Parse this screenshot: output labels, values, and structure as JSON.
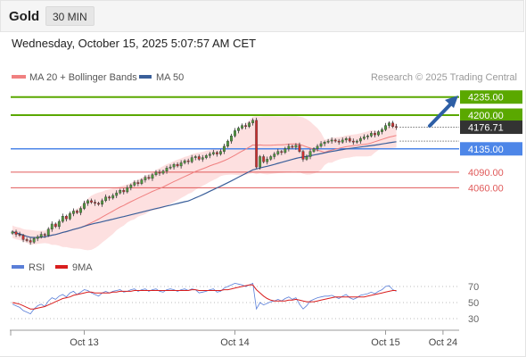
{
  "header": {
    "title": "Gold",
    "interval": "30 MIN"
  },
  "datetime": "Wednesday, October 15, 2025 5:07:57 AM CET",
  "legend": {
    "ma20_label": "MA 20 + Bollinger Bands",
    "ma50_label": "MA 50",
    "credit": "Research © 2025 Trading Central"
  },
  "colors": {
    "green_level": "#5aa800",
    "blue_level": "#4d86e8",
    "red_level": "#e05a5a",
    "up_candle": "#4f9a3e",
    "down_candle": "#cc3030",
    "band_fill": "#fddada",
    "ma20": "#f08080",
    "ma50": "#3a5f9a",
    "arrow": "#2e5fa6",
    "rsi": "#5a7fd8",
    "rsi_ma": "#d91e1e"
  },
  "levels": [
    {
      "price": 4235.0,
      "label": "4235.00",
      "kind": "resistance",
      "color": "green"
    },
    {
      "price": 4200.0,
      "label": "4200.00",
      "kind": "resistance",
      "color": "green"
    },
    {
      "price": 4176.71,
      "label": "4176.71",
      "kind": "last",
      "color": "dark"
    },
    {
      "price": 4135.0,
      "label": "4135.00",
      "kind": "pivot",
      "color": "blue"
    },
    {
      "price": 4090.0,
      "label": "4090.00",
      "kind": "support",
      "color": "red"
    },
    {
      "price": 4060.0,
      "label": "4060.00",
      "kind": "support",
      "color": "red"
    }
  ],
  "price_range": [
    3940,
    4250
  ],
  "x_axis": {
    "labels": [
      "Oct 13",
      "Oct 14",
      "Oct 15",
      "Oct 24"
    ],
    "index": [
      20,
      62,
      104,
      120
    ],
    "total_slots": 125
  },
  "rsi_panel": {
    "legend_rsi": "RSI",
    "legend_ma": "9MA",
    "ticks": [
      "70",
      "50",
      "30"
    ],
    "tick_values": [
      70,
      50,
      30
    ],
    "range": [
      20,
      80
    ]
  },
  "chart_data": {
    "type": "candlestick",
    "close": [
      3975,
      3970,
      3968,
      3960,
      3958,
      3955,
      3962,
      3965,
      3970,
      3968,
      3980,
      3990,
      3985,
      3995,
      4005,
      4000,
      4010,
      4015,
      4012,
      4020,
      4030,
      4035,
      4032,
      4030,
      4028,
      4035,
      4042,
      4040,
      4045,
      4050,
      4055,
      4052,
      4060,
      4065,
      4070,
      4068,
      4075,
      4080,
      4078,
      4085,
      4090,
      4088,
      4092,
      4098,
      4100,
      4105,
      4102,
      4108,
      4112,
      4110,
      4118,
      4120,
      4115,
      4118,
      4122,
      4125,
      4128,
      4125,
      4130,
      4140,
      4150,
      4160,
      4170,
      4175,
      4180,
      4178,
      4185,
      4190,
      4100,
      4120,
      4110,
      4115,
      4120,
      4125,
      4130,
      4128,
      4135,
      4140,
      4138,
      4142,
      4130,
      4115,
      4120,
      4130,
      4135,
      4140,
      4145,
      4148,
      4150,
      4152,
      4150,
      4148,
      4152,
      4155,
      4150,
      4148,
      4150,
      4155,
      4158,
      4160,
      4165,
      4162,
      4168,
      4172,
      4180,
      4185,
      4178,
      4176.71
    ],
    "rsi": [
      48,
      46,
      44,
      40,
      38,
      36,
      42,
      46,
      48,
      45,
      52,
      56,
      54,
      58,
      60,
      57,
      62,
      64,
      60,
      63,
      66,
      65,
      62,
      60,
      58,
      62,
      64,
      62,
      64,
      65,
      66,
      63,
      64,
      66,
      67,
      64,
      66,
      67,
      64,
      66,
      67,
      64,
      63,
      66,
      67,
      66,
      64,
      66,
      67,
      65,
      67,
      66,
      62,
      63,
      64,
      66,
      67,
      63,
      64,
      68,
      70,
      72,
      74,
      73,
      72,
      70,
      72,
      74,
      42,
      50,
      47,
      49,
      51,
      52,
      54,
      52,
      55,
      57,
      54,
      56,
      48,
      42,
      46,
      52,
      54,
      56,
      57,
      58,
      58,
      59,
      57,
      55,
      58,
      60,
      56,
      54,
      56,
      59,
      60,
      61,
      63,
      61,
      64,
      66,
      70,
      71,
      66,
      64
    ],
    "rsi_ma": [
      50,
      49,
      48,
      46,
      44,
      42,
      42,
      43,
      44,
      45,
      47,
      49,
      51,
      53,
      55,
      56,
      57,
      59,
      60,
      61,
      62,
      63,
      63,
      62,
      62,
      62,
      62,
      62,
      63,
      63,
      64,
      64,
      64,
      64,
      65,
      65,
      65,
      65,
      65,
      65,
      65,
      65,
      65,
      65,
      65,
      65,
      65,
      65,
      65,
      65,
      66,
      66,
      65,
      65,
      65,
      65,
      65,
      65,
      65,
      66,
      66,
      67,
      68,
      69,
      70,
      71,
      72,
      72,
      66,
      62,
      58,
      55,
      53,
      52,
      52,
      52,
      52,
      53,
      53,
      54,
      53,
      52,
      51,
      51,
      51,
      52,
      53,
      54,
      55,
      56,
      57,
      57,
      57,
      57,
      57,
      57,
      57,
      57,
      57,
      58,
      59,
      60,
      61,
      62,
      63,
      64,
      65,
      65
    ]
  }
}
